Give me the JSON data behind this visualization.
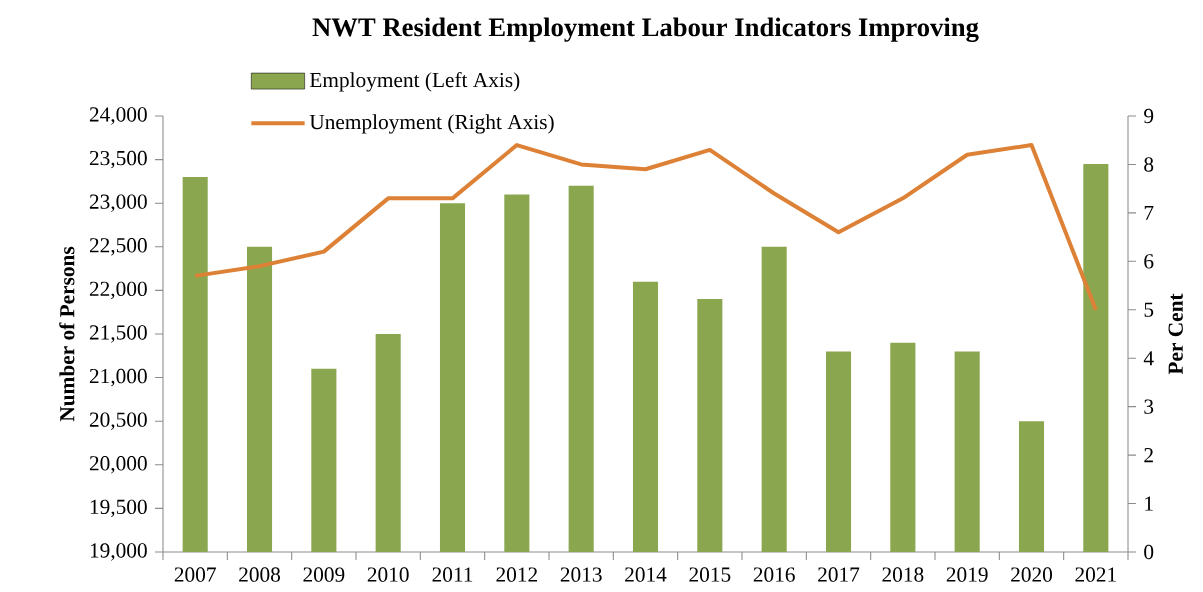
{
  "chart_data": {
    "type": "bar",
    "title": "NWT Resident Employment Labour Indicators Improving",
    "ylabel": "Number of Persons",
    "y2label": "Per Cent",
    "categories": [
      "2007",
      "2008",
      "2009",
      "2010",
      "2011",
      "2012",
      "2013",
      "2014",
      "2015",
      "2016",
      "2017",
      "2018",
      "2019",
      "2020",
      "2021"
    ],
    "series": [
      {
        "name": "Employment (Left Axis)",
        "color": "#8aa64e",
        "values": [
          23300,
          22500,
          21100,
          21500,
          23000,
          23100,
          23200,
          22100,
          21900,
          22500,
          21300,
          21400,
          21300,
          20500,
          23450
        ]
      },
      {
        "name": "Unemployment (Right Axis)",
        "type": "line",
        "axis": "y2",
        "color": "#dd8136",
        "values": [
          5.7,
          5.9,
          6.2,
          7.3,
          7.3,
          8.4,
          8.0,
          7.9,
          8.3,
          7.4,
          6.6,
          7.3,
          8.2,
          8.4,
          5.0
        ]
      }
    ],
    "ylim": [
      19000,
      24000
    ],
    "yticks": [
      {
        "value": 19000,
        "label": "19,000"
      },
      {
        "value": 19500,
        "label": "19,500"
      },
      {
        "value": 20000,
        "label": "20,000"
      },
      {
        "value": 20500,
        "label": "20,500"
      },
      {
        "value": 21000,
        "label": "21,000"
      },
      {
        "value": 21500,
        "label": "21,500"
      },
      {
        "value": 22000,
        "label": "22,000"
      },
      {
        "value": 22500,
        "label": "22,500"
      },
      {
        "value": 23000,
        "label": "23,000"
      },
      {
        "value": 23500,
        "label": "23,500"
      },
      {
        "value": 24000,
        "label": "24,000"
      }
    ],
    "y2lim": [
      0,
      9
    ],
    "y2ticks": [
      0,
      1,
      2,
      3,
      4,
      5,
      6,
      7,
      8,
      9
    ],
    "legend": "top"
  }
}
